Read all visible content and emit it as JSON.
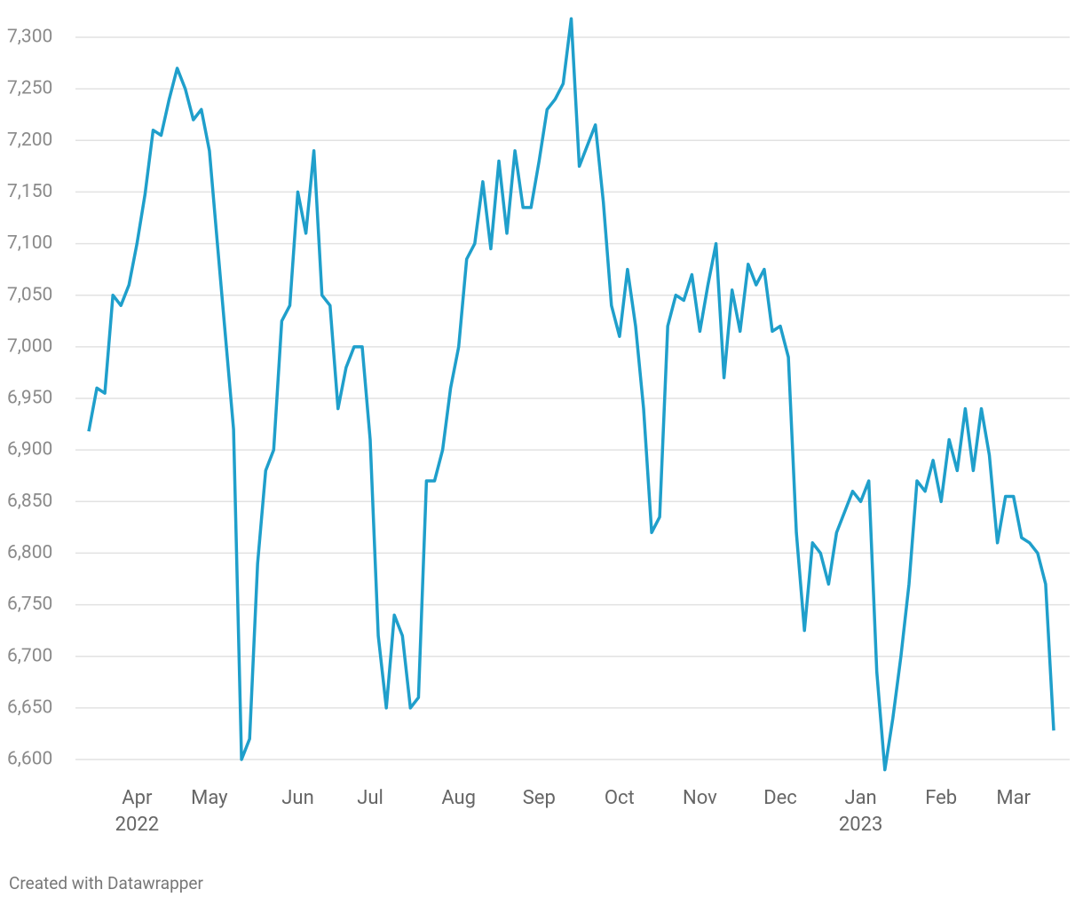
{
  "chart_data": {
    "type": "line",
    "categories": [
      null,
      null,
      null,
      null,
      null,
      null,
      "Apr",
      null,
      null,
      null,
      null,
      null,
      null,
      null,
      null,
      "May",
      null,
      null,
      null,
      null,
      null,
      null,
      null,
      null,
      null,
      null,
      "Jun",
      null,
      null,
      null,
      null,
      null,
      null,
      null,
      null,
      "Jul",
      null,
      null,
      null,
      null,
      null,
      null,
      null,
      null,
      null,
      null,
      "Aug",
      null,
      null,
      null,
      null,
      null,
      null,
      null,
      null,
      null,
      "Sep",
      null,
      null,
      null,
      null,
      null,
      null,
      null,
      null,
      null,
      "Oct",
      null,
      null,
      null,
      null,
      null,
      null,
      null,
      null,
      null,
      "Nov",
      null,
      null,
      null,
      null,
      null,
      null,
      null,
      null,
      null,
      "Dec",
      null,
      null,
      null,
      null,
      null,
      null,
      null,
      null,
      null,
      "Jan",
      null,
      null,
      null,
      null,
      null,
      null,
      null,
      null,
      null,
      "Feb",
      null,
      null,
      null,
      null,
      null,
      null,
      null,
      null,
      "Mar",
      null,
      null,
      null,
      null,
      null
    ],
    "sublabels": [
      null,
      null,
      null,
      null,
      null,
      null,
      "2022",
      null,
      null,
      null,
      null,
      null,
      null,
      null,
      null,
      null,
      null,
      null,
      null,
      null,
      null,
      null,
      null,
      null,
      null,
      null,
      null,
      null,
      null,
      null,
      null,
      null,
      null,
      null,
      null,
      null,
      null,
      null,
      null,
      null,
      null,
      null,
      null,
      null,
      null,
      null,
      null,
      null,
      null,
      null,
      null,
      null,
      null,
      null,
      null,
      null,
      null,
      null,
      null,
      null,
      null,
      null,
      null,
      null,
      null,
      null,
      null,
      null,
      null,
      null,
      null,
      null,
      null,
      null,
      null,
      null,
      null,
      null,
      null,
      null,
      null,
      null,
      null,
      null,
      null,
      null,
      null,
      null,
      null,
      null,
      null,
      null,
      null,
      null,
      null,
      null,
      "2023",
      null,
      null,
      null,
      null,
      null,
      null,
      null,
      null,
      null,
      null,
      null,
      null,
      null,
      null,
      null,
      null,
      null,
      null,
      null,
      null,
      null,
      null,
      null,
      null
    ],
    "series": [
      {
        "color": "#1f9fcb",
        "values": [
          6918,
          6960,
          6955,
          7050,
          7040,
          7060,
          7100,
          7148,
          7210,
          7205,
          7240,
          7270,
          7250,
          7220,
          7230,
          7190,
          7100,
          7010,
          6920,
          6600,
          6620,
          6790,
          6880,
          6900,
          7025,
          7040,
          7150,
          7110,
          7190,
          7050,
          7040,
          6940,
          6980,
          7000,
          7000,
          6910,
          6720,
          6650,
          6740,
          6720,
          6650,
          6660,
          6870,
          6870,
          6900,
          6960,
          7000,
          7085,
          7100,
          7160,
          7095,
          7180,
          7110,
          7190,
          7135,
          7135,
          7180,
          7230,
          7240,
          7255,
          7318,
          7175,
          7195,
          7215,
          7140,
          7040,
          7010,
          7075,
          7020,
          6940,
          6820,
          6835,
          7020,
          7050,
          7045,
          7070,
          7015,
          7060,
          7100,
          6970,
          7055,
          7015,
          7080,
          7060,
          7075,
          7015,
          7020,
          6990,
          6820,
          6725,
          6810,
          6800,
          6770,
          6820,
          6840,
          6860,
          6850,
          6870,
          6685,
          6590,
          6640,
          6700,
          6770,
          6870,
          6860,
          6890,
          6850,
          6910,
          6880,
          6940,
          6880,
          6940,
          6895,
          6810,
          6855,
          6855,
          6815,
          6810,
          6800,
          6770,
          6628
        ]
      }
    ],
    "ylim": [
      6600,
      7300
    ],
    "yticks": [
      {
        "value": 6600,
        "label": "6,600"
      },
      {
        "value": 6650,
        "label": "6,650"
      },
      {
        "value": 6700,
        "label": "6,700"
      },
      {
        "value": 6750,
        "label": "6,750"
      },
      {
        "value": 6800,
        "label": "6,800"
      },
      {
        "value": 6850,
        "label": "6,850"
      },
      {
        "value": 6900,
        "label": "6,900"
      },
      {
        "value": 6950,
        "label": "6,950"
      },
      {
        "value": 7000,
        "label": "7,000"
      },
      {
        "value": 7050,
        "label": "7,050"
      },
      {
        "value": 7100,
        "label": "7,100"
      },
      {
        "value": 7150,
        "label": "7,150"
      },
      {
        "value": 7200,
        "label": "7,200"
      },
      {
        "value": 7250,
        "label": "7,250"
      },
      {
        "value": 7300,
        "label": "7,300"
      }
    ],
    "grid": true,
    "footer": "Created with Datawrapper"
  }
}
